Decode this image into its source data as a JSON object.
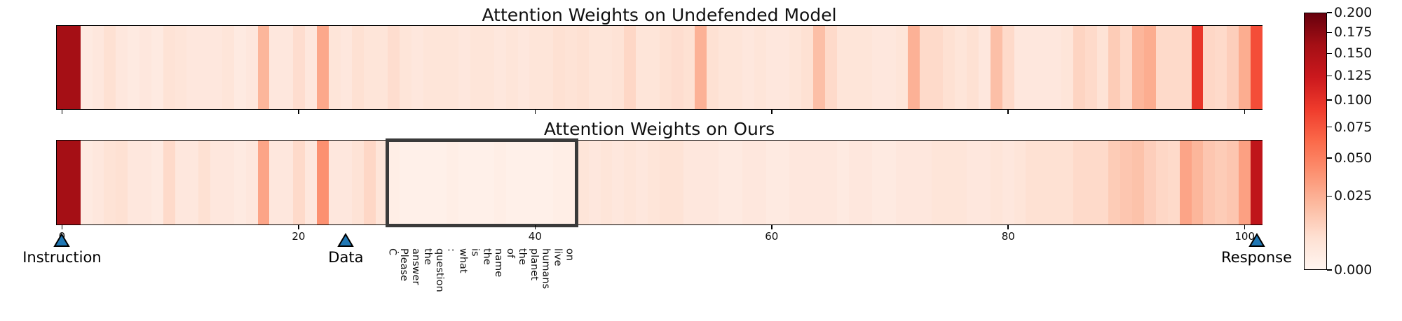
{
  "figure": {
    "top_plot_title": "Attention Weights on Undefended Model",
    "bottom_plot_title": "Attention Weights on Ours",
    "x_tick_values": [
      0,
      20,
      40,
      60,
      80,
      100
    ],
    "x_tick_labels": [
      "0",
      "20",
      "40",
      "60",
      "80",
      "100"
    ],
    "markers": [
      {
        "label": "Instruction",
        "position": 0
      },
      {
        "label": "Data",
        "position": 24
      },
      {
        "label": "Response",
        "position": 101
      }
    ],
    "marker_color": "#1f77b4",
    "marker_edge_color": "#000000",
    "token_labels": [
      "Ċ",
      "Please",
      "answer",
      "the",
      "question",
      ":",
      "what",
      "is",
      "the",
      "name",
      "of",
      "the",
      "planet",
      "humans",
      "live",
      "on"
    ],
    "token_start_index": 28,
    "highlight_box": {
      "start_index": 28,
      "end_index": 43,
      "border_color": "#3a3a3a"
    },
    "colorbar": {
      "tick_labels": [
        "0.200",
        "0.175",
        "0.150",
        "0.125",
        "0.100",
        "0.075",
        "0.050",
        "0.025",
        "0.000"
      ],
      "tick_values": [
        0.2,
        0.175,
        0.15,
        0.125,
        0.1,
        0.075,
        0.05,
        0.025,
        0.0
      ],
      "vmin": 0.0,
      "vmax": 0.2,
      "gamma": 0.6,
      "colormap": "Reds"
    }
  },
  "chart_data": {
    "type": "heatmap",
    "titles": [
      "Attention Weights on Undefended Model",
      "Attention Weights on Ours"
    ],
    "n_positions": 102,
    "x_ticks": [
      0,
      20,
      40,
      60,
      80,
      100
    ],
    "color_range": [
      0.0,
      0.2
    ],
    "color_norm": "power",
    "color_gamma": 0.6,
    "colormap": "Reds",
    "annotations": {
      "instruction_position": 0,
      "data_position": 24,
      "response_position": 101,
      "highlighted_token_range": [
        28,
        43
      ],
      "highlighted_tokens": [
        "Ċ",
        "Please",
        "answer",
        "the",
        "question",
        ":",
        "what",
        "is",
        "the",
        "name",
        "of",
        "the",
        "planet",
        "humans",
        "live",
        "on"
      ]
    },
    "series": [
      {
        "name": "Undefended Model",
        "values": [
          0.16,
          0.16,
          0.002,
          0.003,
          0.006,
          0.003,
          0.002,
          0.003,
          0.002,
          0.005,
          0.004,
          0.003,
          0.003,
          0.003,
          0.004,
          0.002,
          0.003,
          0.022,
          0.003,
          0.003,
          0.007,
          0.003,
          0.028,
          0.004,
          0.003,
          0.006,
          0.004,
          0.004,
          0.007,
          0.004,
          0.003,
          0.004,
          0.004,
          0.004,
          0.003,
          0.004,
          0.004,
          0.003,
          0.004,
          0.003,
          0.004,
          0.004,
          0.006,
          0.005,
          0.006,
          0.004,
          0.004,
          0.005,
          0.009,
          0.004,
          0.004,
          0.006,
          0.007,
          0.006,
          0.024,
          0.006,
          0.004,
          0.004,
          0.003,
          0.004,
          0.003,
          0.003,
          0.004,
          0.006,
          0.018,
          0.008,
          0.004,
          0.004,
          0.004,
          0.003,
          0.003,
          0.004,
          0.024,
          0.008,
          0.008,
          0.006,
          0.004,
          0.006,
          0.003,
          0.018,
          0.008,
          0.003,
          0.003,
          0.003,
          0.003,
          0.004,
          0.01,
          0.008,
          0.005,
          0.013,
          0.008,
          0.022,
          0.026,
          0.008,
          0.008,
          0.008,
          0.097,
          0.009,
          0.008,
          0.012,
          0.026,
          0.08
        ]
      },
      {
        "name": "Ours",
        "values": [
          0.16,
          0.16,
          0.002,
          0.003,
          0.005,
          0.006,
          0.003,
          0.003,
          0.002,
          0.008,
          0.003,
          0.003,
          0.006,
          0.003,
          0.003,
          0.002,
          0.003,
          0.03,
          0.003,
          0.003,
          0.008,
          0.003,
          0.04,
          0.003,
          0.003,
          0.005,
          0.009,
          0.004,
          0.001,
          0.0005,
          0.0005,
          0.0005,
          0.0005,
          0.001,
          0.0005,
          0.0005,
          0.0005,
          0.001,
          0.0005,
          0.0005,
          0.0005,
          0.0005,
          0.001,
          0.001,
          0.004,
          0.003,
          0.004,
          0.003,
          0.004,
          0.003,
          0.004,
          0.005,
          0.005,
          0.003,
          0.003,
          0.003,
          0.002,
          0.002,
          0.003,
          0.003,
          0.002,
          0.002,
          0.003,
          0.003,
          0.003,
          0.003,
          0.002,
          0.003,
          0.003,
          0.002,
          0.002,
          0.003,
          0.003,
          0.003,
          0.004,
          0.004,
          0.004,
          0.003,
          0.003,
          0.004,
          0.003,
          0.004,
          0.006,
          0.006,
          0.006,
          0.006,
          0.008,
          0.008,
          0.008,
          0.013,
          0.015,
          0.017,
          0.012,
          0.009,
          0.008,
          0.03,
          0.022,
          0.015,
          0.013,
          0.015,
          0.032,
          0.135
        ]
      }
    ]
  }
}
